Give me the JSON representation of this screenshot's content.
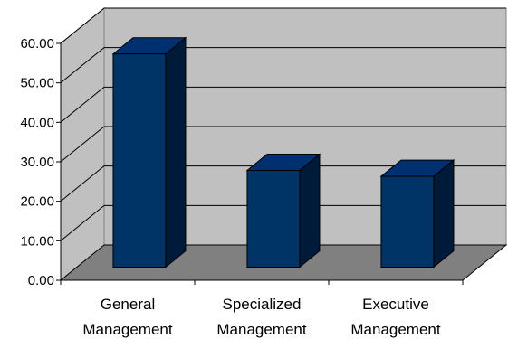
{
  "chart_data": {
    "type": "bar",
    "categories": [
      [
        "General",
        "Management"
      ],
      [
        "Specialized",
        "Management"
      ],
      [
        "Executive",
        "Management"
      ]
    ],
    "values": [
      54.0,
      24.5,
      23.0
    ],
    "ylim": [
      0,
      60
    ],
    "yticks": [
      "0.00",
      "10.00",
      "20.00",
      "30.00",
      "40.00",
      "50.00",
      "60.00"
    ],
    "grid": true,
    "three_d": true,
    "colors": {
      "bar_front": "#003366",
      "bar_side": "#001a3a",
      "bar_top": "#003070",
      "wall": "#c0c0c0",
      "floor": "#808080",
      "grid": "#000000"
    }
  }
}
